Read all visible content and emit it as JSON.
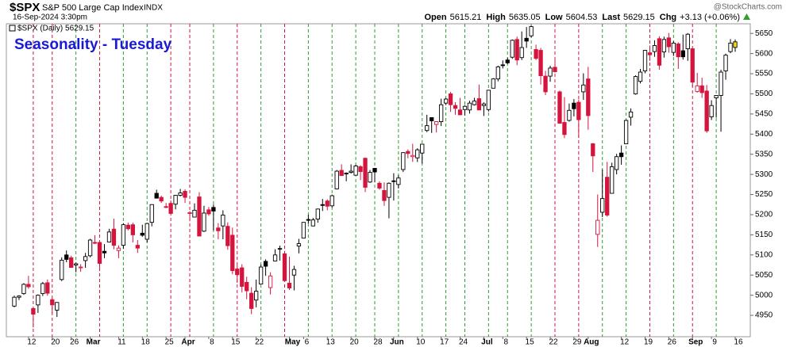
{
  "header": {
    "symbol": "$SPX",
    "name": "S&P 500 Large Cap Index",
    "exchange": "INDX",
    "timestamp": "16-Sep-2024 3:30pm",
    "source": "@StockCharts.com",
    "quote": [
      {
        "label": "Open",
        "value": "5615.21"
      },
      {
        "label": "High",
        "value": "5635.05"
      },
      {
        "label": "Low",
        "value": "5604.53"
      },
      {
        "label": "Last",
        "value": "5629.15"
      },
      {
        "label": "Chg",
        "value": "+3.13 (+0.06%)"
      }
    ]
  },
  "chart_data": {
    "type": "candlestick",
    "title": "Seasonality - Tuesday",
    "legend": "$SPX (Daily) 5629.15",
    "up_color": "#000000",
    "down_color": "#d4143c",
    "highlight_color": "#f5e11a",
    "season_up_color": "#2e9e2e",
    "season_down_color": "#d4143c",
    "season_weekday": "Tuesday",
    "ylim": [
      4897,
      5674
    ],
    "yticks": [
      4950,
      5000,
      5050,
      5100,
      5150,
      5200,
      5250,
      5300,
      5350,
      5400,
      5450,
      5500,
      5550,
      5600,
      5650
    ],
    "x": [
      "2024-02-07",
      "2024-02-08",
      "2024-02-09",
      "2024-02-12",
      "2024-02-13",
      "2024-02-14",
      "2024-02-15",
      "2024-02-16",
      "2024-02-20",
      "2024-02-21",
      "2024-02-22",
      "2024-02-23",
      "2024-02-26",
      "2024-02-27",
      "2024-02-28",
      "2024-02-29",
      "2024-03-01",
      "2024-03-04",
      "2024-03-05",
      "2024-03-06",
      "2024-03-07",
      "2024-03-08",
      "2024-03-11",
      "2024-03-12",
      "2024-03-13",
      "2024-03-14",
      "2024-03-15",
      "2024-03-18",
      "2024-03-19",
      "2024-03-20",
      "2024-03-21",
      "2024-03-22",
      "2024-03-25",
      "2024-03-26",
      "2024-03-27",
      "2024-03-28",
      "2024-04-01",
      "2024-04-02",
      "2024-04-03",
      "2024-04-04",
      "2024-04-05",
      "2024-04-08",
      "2024-04-09",
      "2024-04-10",
      "2024-04-11",
      "2024-04-12",
      "2024-04-15",
      "2024-04-16",
      "2024-04-17",
      "2024-04-18",
      "2024-04-19",
      "2024-04-22",
      "2024-04-23",
      "2024-04-24",
      "2024-04-25",
      "2024-04-26",
      "2024-04-29",
      "2024-04-30",
      "2024-05-01",
      "2024-05-02",
      "2024-05-03",
      "2024-05-06",
      "2024-05-07",
      "2024-05-08",
      "2024-05-09",
      "2024-05-10",
      "2024-05-13",
      "2024-05-14",
      "2024-05-15",
      "2024-05-16",
      "2024-05-17",
      "2024-05-20",
      "2024-05-21",
      "2024-05-22",
      "2024-05-23",
      "2024-05-24",
      "2024-05-28",
      "2024-05-29",
      "2024-05-30",
      "2024-05-31",
      "2024-06-03",
      "2024-06-04",
      "2024-06-05",
      "2024-06-06",
      "2024-06-07",
      "2024-06-10",
      "2024-06-11",
      "2024-06-12",
      "2024-06-13",
      "2024-06-14",
      "2024-06-17",
      "2024-06-18",
      "2024-06-20",
      "2024-06-21",
      "2024-06-24",
      "2024-06-25",
      "2024-06-26",
      "2024-06-27",
      "2024-06-28",
      "2024-07-01",
      "2024-07-02",
      "2024-07-03",
      "2024-07-05",
      "2024-07-08",
      "2024-07-09",
      "2024-07-10",
      "2024-07-11",
      "2024-07-12",
      "2024-07-15",
      "2024-07-16",
      "2024-07-17",
      "2024-07-18",
      "2024-07-19",
      "2024-07-22",
      "2024-07-23",
      "2024-07-24",
      "2024-07-25",
      "2024-07-26",
      "2024-07-29",
      "2024-07-30",
      "2024-07-31",
      "2024-08-01",
      "2024-08-02",
      "2024-08-05",
      "2024-08-06",
      "2024-08-07",
      "2024-08-08",
      "2024-08-09",
      "2024-08-12",
      "2024-08-13",
      "2024-08-14",
      "2024-08-15",
      "2024-08-16",
      "2024-08-19",
      "2024-08-20",
      "2024-08-21",
      "2024-08-22",
      "2024-08-23",
      "2024-08-26",
      "2024-08-27",
      "2024-08-28",
      "2024-08-29",
      "2024-08-30",
      "2024-09-03",
      "2024-09-04",
      "2024-09-05",
      "2024-09-06",
      "2024-09-09",
      "2024-09-10",
      "2024-09-11",
      "2024-09-12",
      "2024-09-13",
      "2024-09-16"
    ],
    "open": [
      4973,
      4995,
      5004,
      5027,
      4967,
      4976,
      5004,
      5031,
      4989,
      4963,
      5039,
      5100,
      5093,
      5075,
      5068,
      5086,
      5098,
      5131,
      5131,
      5109,
      5132,
      5164,
      5111,
      5124,
      5174,
      5175,
      5124,
      5154,
      5139,
      5181,
      5253,
      5243,
      5220,
      5228,
      5226,
      5248,
      5258,
      5204,
      5194,
      5244,
      5159,
      5212,
      5218,
      5167,
      5172,
      5171,
      5149,
      5065,
      5068,
      5032,
      5005,
      4988,
      5028,
      5084,
      5019,
      5085,
      5114,
      5103,
      5030,
      5050,
      5122,
      5142,
      5188,
      5172,
      5189,
      5225,
      5234,
      5222,
      5264,
      5310,
      5303,
      5305,
      5298,
      5319,
      5340,
      5281,
      5315,
      5278,
      5260,
      5243,
      5284,
      5275,
      5312,
      5357,
      5344,
      5341,
      5353,
      5409,
      5441,
      5424,
      5431,
      5477,
      5500,
      5471,
      5460,
      5461,
      5460,
      5473,
      5488,
      5471,
      5461,
      5514,
      5537,
      5572,
      5584,
      5591,
      5635,
      5590,
      5638,
      5644,
      5610,
      5608,
      5544,
      5544,
      5566,
      5505,
      5429,
      5434,
      5477,
      5479,
      5505,
      5537,
      5376,
      5151,
      5206,
      5293,
      5253,
      5312,
      5353,
      5376,
      5442,
      5500,
      5531,
      5557,
      5602,
      5605,
      5637,
      5604,
      5639,
      5603,
      5624,
      5607,
      5612,
      5612,
      5506,
      5520,
      5507,
      5443,
      5490,
      5496,
      5557,
      5605,
      5615.21
    ],
    "high": [
      4999,
      5000,
      5030,
      5048,
      4969,
      5002,
      5033,
      5039,
      4993,
      4983,
      5094,
      5111,
      5098,
      5081,
      5077,
      5105,
      5140,
      5149,
      5132,
      5127,
      5165,
      5190,
      5124,
      5179,
      5180,
      5180,
      5137,
      5175,
      5180,
      5226,
      5262,
      5247,
      5229,
      5235,
      5249,
      5264,
      5263,
      5209,
      5228,
      5256,
      5222,
      5219,
      5225,
      5179,
      5211,
      5181,
      5168,
      5074,
      5077,
      5046,
      5020,
      5039,
      5076,
      5089,
      5057,
      5114,
      5123,
      5110,
      5096,
      5073,
      5140,
      5181,
      5200,
      5192,
      5215,
      5239,
      5238,
      5250,
      5311,
      5325,
      5305,
      5325,
      5324,
      5323,
      5342,
      5311,
      5315,
      5283,
      5280,
      5280,
      5303,
      5298,
      5355,
      5362,
      5376,
      5365,
      5376,
      5448,
      5441,
      5432,
      5488,
      5490,
      5505,
      5479,
      5490,
      5472,
      5483,
      5490,
      5523,
      5479,
      5510,
      5539,
      5570,
      5583,
      5590,
      5635,
      5642,
      5655,
      5666,
      5669,
      5622,
      5614,
      5557,
      5570,
      5586,
      5508,
      5492,
      5476,
      5487,
      5486,
      5551,
      5567,
      5378,
      5250,
      5312,
      5331,
      5329,
      5351,
      5372,
      5436,
      5464,
      5546,
      5562,
      5609,
      5620,
      5633,
      5643,
      5642,
      5651,
      5631,
      5628,
      5647,
      5651,
      5612,
      5552,
      5540,
      5522,
      5484,
      5497,
      5560,
      5600,
      5636,
      5635.05
    ],
    "low": [
      4970,
      4988,
      5001,
      5016,
      4920,
      4956,
      4998,
      4999,
      4955,
      4946,
      5035,
      5082,
      5068,
      5057,
      5058,
      5068,
      5094,
      5127,
      5061,
      5092,
      5131,
      5114,
      5092,
      5115,
      5161,
      5131,
      5105,
      5145,
      5131,
      5171,
      5240,
      5229,
      5216,
      5203,
      5213,
      5245,
      5229,
      5184,
      5194,
      5146,
      5157,
      5197,
      5161,
      5139,
      5139,
      5113,
      5052,
      5031,
      5007,
      4990,
      4953,
      4970,
      5028,
      5048,
      5002,
      5084,
      5086,
      5036,
      5013,
      5012,
      5104,
      5142,
      5178,
      5171,
      5180,
      5209,
      5211,
      5218,
      5263,
      5297,
      5283,
      5302,
      5297,
      5286,
      5256,
      5279,
      5280,
      5262,
      5222,
      5191,
      5235,
      5265,
      5306,
      5340,
      5331,
      5331,
      5327,
      5405,
      5403,
      5404,
      5420,
      5472,
      5455,
      5448,
      5447,
      5446,
      5451,
      5471,
      5460,
      5445,
      5456,
      5514,
      5531,
      5563,
      5574,
      5587,
      5571,
      5584,
      5614,
      5640,
      5584,
      5523,
      5497,
      5530,
      5553,
      5426,
      5390,
      5431,
      5444,
      5391,
      5485,
      5411,
      5306,
      5120,
      5194,
      5195,
      5253,
      5300,
      5324,
      5376,
      5421,
      5498,
      5526,
      5551,
      5582,
      5592,
      5560,
      5590,
      5602,
      5594,
      5562,
      5585,
      5582,
      5518,
      5503,
      5490,
      5403,
      5435,
      5441,
      5406,
      5535,
      5601,
      5604.53
    ],
    "close": [
      4995,
      4998,
      5027,
      5021,
      4953,
      5000,
      5029,
      5005,
      4976,
      4982,
      5087,
      5089,
      5069,
      5078,
      5070,
      5096,
      5137,
      5131,
      5079,
      5105,
      5157,
      5124,
      5117,
      5175,
      5165,
      5150,
      5117,
      5149,
      5178,
      5225,
      5241,
      5234,
      5218,
      5203,
      5248,
      5254,
      5243,
      5205,
      5211,
      5147,
      5204,
      5202,
      5209,
      5160,
      5199,
      5123,
      5061,
      5051,
      5022,
      5011,
      4967,
      5010,
      5070,
      5072,
      5048,
      5100,
      5116,
      5036,
      5018,
      5064,
      5128,
      5181,
      5187,
      5187,
      5214,
      5223,
      5221,
      5247,
      5308,
      5297,
      5303,
      5308,
      5321,
      5307,
      5268,
      5305,
      5306,
      5266,
      5235,
      5278,
      5283,
      5291,
      5354,
      5352,
      5347,
      5361,
      5375,
      5421,
      5433,
      5431,
      5473,
      5487,
      5473,
      5464,
      5448,
      5469,
      5477,
      5482,
      5460,
      5475,
      5509,
      5537,
      5567,
      5572,
      5577,
      5633,
      5584,
      5615,
      5631,
      5667,
      5588,
      5545,
      5505,
      5564,
      5555,
      5427,
      5399,
      5459,
      5463,
      5436,
      5522,
      5446,
      5346,
      5186,
      5240,
      5199,
      5319,
      5344,
      5344,
      5434,
      5455,
      5543,
      5554,
      5608,
      5597,
      5620,
      5571,
      5635,
      5617,
      5626,
      5592,
      5592,
      5648,
      5529,
      5520,
      5503,
      5408,
      5471,
      5496,
      5554,
      5596,
      5626,
      5629.15
    ],
    "xticks": [
      {
        "value": "2024-02-12",
        "label": "12"
      },
      {
        "value": "2024-02-20",
        "label": "20"
      },
      {
        "value": "2024-02-26",
        "label": "26"
      },
      {
        "value": "2024-03-01",
        "label": "Mar"
      },
      {
        "value": "2024-03-11",
        "label": "11"
      },
      {
        "value": "2024-03-18",
        "label": "18"
      },
      {
        "value": "2024-03-25",
        "label": "25"
      },
      {
        "value": "2024-04-01",
        "label": "Apr"
      },
      {
        "value": "2024-04-08",
        "label": "8"
      },
      {
        "value": "2024-04-15",
        "label": "15"
      },
      {
        "value": "2024-04-22",
        "label": "22"
      },
      {
        "value": "2024-05-01",
        "label": "May"
      },
      {
        "value": "2024-05-06",
        "label": "6"
      },
      {
        "value": "2024-05-13",
        "label": "13"
      },
      {
        "value": "2024-05-20",
        "label": "20"
      },
      {
        "value": "2024-05-28",
        "label": "28"
      },
      {
        "value": "2024-06-03",
        "label": "Jun"
      },
      {
        "value": "2024-06-10",
        "label": "10"
      },
      {
        "value": "2024-06-17",
        "label": "17"
      },
      {
        "value": "2024-06-24",
        "label": "24"
      },
      {
        "value": "2024-07-01",
        "label": "Jul"
      },
      {
        "value": "2024-07-08",
        "label": "8"
      },
      {
        "value": "2024-07-15",
        "label": "15"
      },
      {
        "value": "2024-07-22",
        "label": "22"
      },
      {
        "value": "2024-07-29",
        "label": "29"
      },
      {
        "value": "2024-08-01",
        "label": "Aug"
      },
      {
        "value": "2024-08-12",
        "label": "12"
      },
      {
        "value": "2024-08-19",
        "label": "19"
      },
      {
        "value": "2024-08-26",
        "label": "26"
      },
      {
        "value": "2024-09-03",
        "label": "Sep"
      },
      {
        "value": "2024-09-09",
        "label": "9"
      },
      {
        "value": "2024-09-16",
        "label": "16"
      }
    ]
  }
}
